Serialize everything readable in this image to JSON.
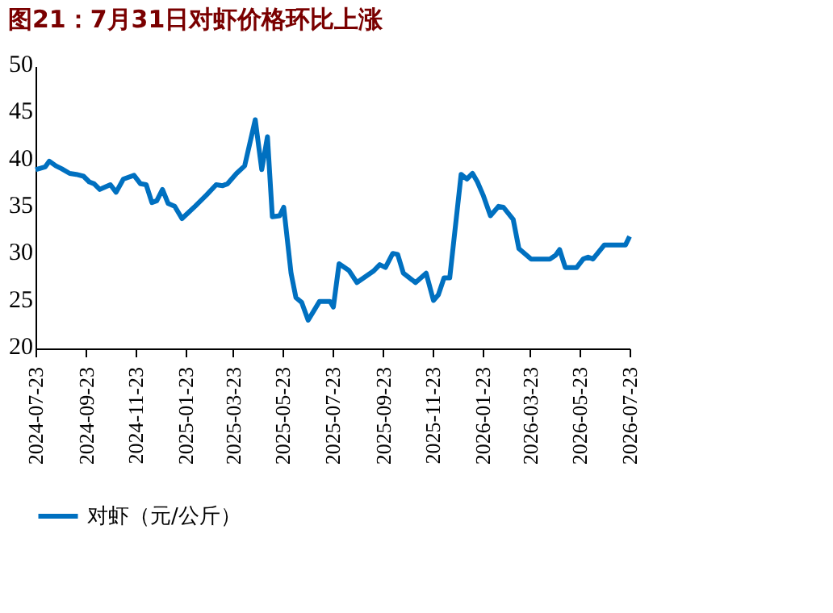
{
  "chart_data": {
    "type": "line",
    "title": "图21：7月31日对虾价格环比上涨",
    "x": [
      "2024-07-23",
      "2024-08-04",
      "2024-08-09",
      "2024-08-17",
      "2024-08-24",
      "2024-09-03",
      "2024-09-11",
      "2024-09-20",
      "2024-09-27",
      "2024-10-03",
      "2024-10-10",
      "2024-10-23",
      "2024-10-30",
      "2024-11-08",
      "2024-11-21",
      "2024-11-29",
      "2024-12-06",
      "2024-12-13",
      "2024-12-19",
      "2024-12-26",
      "2025-01-02",
      "2025-01-10",
      "2025-01-19",
      "2025-02-04",
      "2025-02-18",
      "2025-03-02",
      "2025-03-10",
      "2025-03-16",
      "2025-03-27",
      "2025-04-06",
      "2025-04-19",
      "2025-04-27",
      "2025-05-04",
      "2025-05-10",
      "2025-05-19",
      "2025-05-24",
      "2025-06-02",
      "2025-06-08",
      "2025-06-15",
      "2025-06-23",
      "2025-07-07",
      "2025-07-20",
      "2025-07-24",
      "2025-07-31",
      "2025-08-12",
      "2025-08-22",
      "2025-09-01",
      "2025-09-11",
      "2025-09-19",
      "2025-09-26",
      "2025-10-05",
      "2025-10-11",
      "2025-10-18",
      "2025-11-02",
      "2025-11-15",
      "2025-11-24",
      "2025-11-30",
      "2025-12-07",
      "2025-12-14",
      "2025-12-28",
      "2026-01-04",
      "2026-01-11",
      "2026-01-17",
      "2026-01-24",
      "2026-02-02",
      "2026-02-12",
      "2026-02-18",
      "2026-03-02",
      "2026-03-09",
      "2026-03-24",
      "2026-04-16",
      "2026-04-23",
      "2026-04-28",
      "2026-05-05",
      "2026-05-19",
      "2026-05-27",
      "2026-06-02",
      "2026-06-08",
      "2026-06-22",
      "2026-07-18",
      "2026-07-23"
    ],
    "series": [
      {
        "name": "对虾（元/公斤）",
        "color": "#0070c0",
        "values": [
          39.0,
          39.3,
          39.9,
          39.4,
          39.1,
          38.6,
          38.5,
          38.3,
          37.7,
          37.5,
          36.9,
          37.4,
          36.6,
          38.0,
          38.4,
          37.5,
          37.4,
          35.5,
          35.7,
          36.9,
          35.4,
          35.1,
          33.8,
          35.1,
          36.3,
          37.4,
          37.3,
          37.5,
          38.6,
          39.4,
          44.3,
          39.0,
          42.5,
          34.0,
          34.1,
          35.0,
          28.0,
          25.4,
          24.9,
          23.0,
          25.0,
          25.0,
          24.4,
          29.0,
          28.3,
          27.0,
          27.6,
          28.2,
          28.9,
          28.6,
          30.1,
          30.0,
          28.0,
          27.0,
          28.0,
          25.1,
          25.7,
          27.5,
          27.5,
          38.5,
          38.0,
          38.6,
          37.7,
          36.3,
          34.1,
          35.1,
          35.0,
          33.7,
          30.6,
          29.5,
          29.5,
          29.9,
          30.5,
          28.6,
          28.6,
          29.5,
          29.7,
          29.5,
          31.0,
          31.0,
          31.9
        ]
      }
    ],
    "xlim": [
      "2024-07-23",
      "2026-07-23"
    ],
    "xticks": [
      "2024-07-23",
      "2024-09-23",
      "2024-11-23",
      "2025-01-23",
      "2025-03-23",
      "2025-05-23",
      "2025-07-23",
      "2025-09-23",
      "2025-11-23",
      "2026-01-23",
      "2026-03-23",
      "2026-05-23",
      "2026-07-23"
    ],
    "ylim": [
      20,
      50
    ],
    "yticks": [
      20,
      25,
      30,
      35,
      40,
      45,
      50
    ],
    "grid": false,
    "legend": "bottom",
    "marker": "none",
    "line_style": "solid"
  }
}
